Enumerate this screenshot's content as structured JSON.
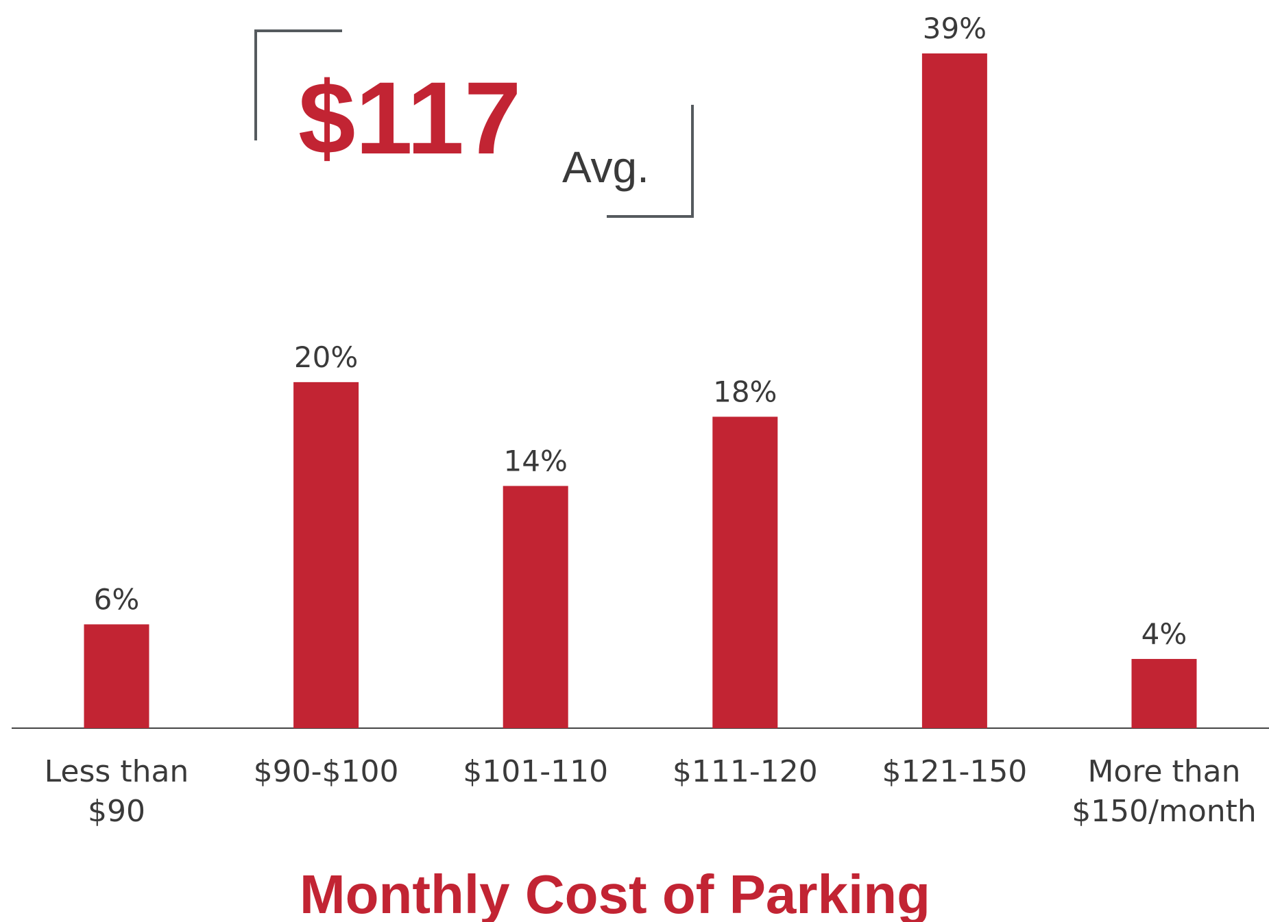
{
  "chart_data": {
    "type": "bar",
    "title": "Monthly Cost of Parking",
    "categories": [
      "Less than $90",
      "$90-$100",
      "$101-110",
      "$111-120",
      "$121-150",
      "More than $150/month"
    ],
    "values": [
      6,
      20,
      14,
      18,
      39,
      4
    ],
    "value_labels": [
      "6%",
      "20%",
      "14%",
      "18%",
      "39%",
      "4%"
    ],
    "color": "#c22433",
    "annotation": {
      "text": "$117",
      "subtext": "Avg."
    }
  }
}
